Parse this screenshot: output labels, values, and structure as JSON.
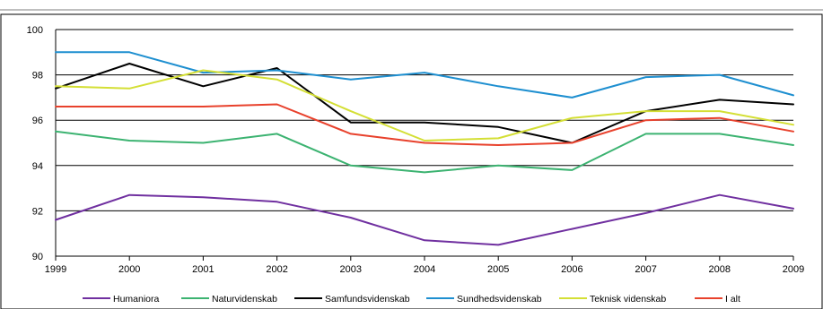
{
  "chart_data": {
    "type": "line",
    "title": "",
    "xlabel": "",
    "ylabel": "",
    "x": [
      "1999",
      "2000",
      "2001",
      "2002",
      "2003",
      "2004",
      "2005",
      "2006",
      "2007",
      "2008",
      "2009"
    ],
    "ylim": [
      90,
      100
    ],
    "yticks": [
      "90",
      "92",
      "94",
      "96",
      "98",
      "100"
    ],
    "grid": "horizontal",
    "legend_position": "bottom",
    "series": [
      {
        "name": "Humaniora",
        "color": "#7030a0",
        "values": [
          91.6,
          92.7,
          92.6,
          92.4,
          91.7,
          90.7,
          90.5,
          91.2,
          91.9,
          92.7,
          92.1
        ]
      },
      {
        "name": "Naturvidenskab",
        "color": "#3cb371",
        "values": [
          95.5,
          95.1,
          95.0,
          95.4,
          94.0,
          93.7,
          94.0,
          93.8,
          95.4,
          95.4,
          94.9
        ]
      },
      {
        "name": "Samfundsvidenskab",
        "color": "#000000",
        "values": [
          97.4,
          98.5,
          97.5,
          98.3,
          95.9,
          95.9,
          95.7,
          95.0,
          96.4,
          96.9,
          96.7
        ]
      },
      {
        "name": "Sundhedsvidenskab",
        "color": "#1e8fd0",
        "values": [
          99.0,
          99.0,
          98.1,
          98.2,
          97.8,
          98.1,
          97.5,
          97.0,
          97.9,
          98.0,
          97.1
        ]
      },
      {
        "name": "Teknisk videnskab",
        "color": "#d4df35",
        "values": [
          97.5,
          97.4,
          98.2,
          97.8,
          96.4,
          95.1,
          95.2,
          96.1,
          96.4,
          96.4,
          95.8
        ]
      },
      {
        "name": "I alt",
        "color": "#e8412c",
        "values": [
          96.6,
          96.6,
          96.6,
          96.7,
          95.4,
          95.0,
          94.9,
          95.0,
          96.0,
          96.1,
          95.5
        ]
      }
    ]
  }
}
